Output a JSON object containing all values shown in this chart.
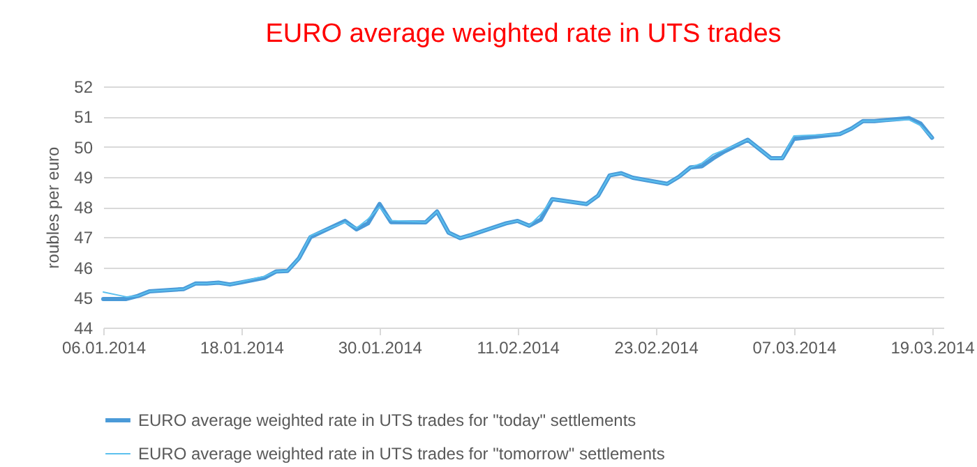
{
  "chart_data": {
    "type": "line",
    "title": "EURO average weighted rate in UTS trades",
    "ylabel": "roubles per euro",
    "x": [
      "2014-01-06",
      "2014-01-08",
      "2014-01-09",
      "2014-01-10",
      "2014-01-13",
      "2014-01-14",
      "2014-01-15",
      "2014-01-16",
      "2014-01-17",
      "2014-01-18",
      "2014-01-20",
      "2014-01-21",
      "2014-01-22",
      "2014-01-23",
      "2014-01-24",
      "2014-01-27",
      "2014-01-28",
      "2014-01-29",
      "2014-01-30",
      "2014-01-31",
      "2014-02-03",
      "2014-02-04",
      "2014-02-05",
      "2014-02-06",
      "2014-02-07",
      "2014-02-10",
      "2014-02-11",
      "2014-02-12",
      "2014-02-13",
      "2014-02-14",
      "2014-02-17",
      "2014-02-18",
      "2014-02-19",
      "2014-02-20",
      "2014-02-21",
      "2014-02-24",
      "2014-02-25",
      "2014-02-26",
      "2014-02-27",
      "2014-02-28",
      "2014-03-01",
      "2014-03-03",
      "2014-03-05",
      "2014-03-06",
      "2014-03-07",
      "2014-03-11",
      "2014-03-12",
      "2014-03-13",
      "2014-03-14",
      "2014-03-17",
      "2014-03-18",
      "2014-03-19"
    ],
    "series": [
      {
        "name": "EURO average weighted rate in UTS trades for \"today\" settlements",
        "color": "#4a9ad8",
        "values": [
          44.95,
          44.95,
          45.05,
          45.2,
          45.28,
          45.46,
          45.46,
          45.49,
          45.43,
          45.5,
          45.65,
          45.86,
          45.88,
          46.3,
          47.0,
          47.54,
          47.26,
          47.46,
          48.1,
          47.5,
          47.49,
          47.85,
          47.15,
          46.97,
          47.08,
          47.46,
          47.54,
          47.38,
          47.58,
          48.26,
          48.1,
          48.38,
          49.05,
          49.12,
          48.97,
          48.77,
          49.0,
          49.31,
          49.35,
          49.62,
          49.85,
          50.23,
          49.62,
          49.62,
          50.26,
          50.42,
          50.6,
          50.85,
          50.85,
          50.95,
          50.77,
          50.3
        ]
      },
      {
        "name": "EURO average weighted rate in UTS trades for \"tomorrow\" settlements",
        "color": "#5bc0ee",
        "values": [
          45.18,
          45.02,
          45.05,
          45.2,
          45.28,
          45.46,
          45.46,
          45.49,
          45.43,
          45.52,
          45.7,
          45.86,
          45.88,
          46.3,
          47.05,
          47.5,
          47.3,
          47.6,
          48.0,
          47.55,
          47.5,
          47.85,
          47.15,
          46.97,
          47.08,
          47.46,
          47.54,
          47.38,
          47.75,
          48.26,
          48.1,
          48.38,
          49.05,
          49.12,
          48.97,
          48.77,
          49.0,
          49.31,
          49.45,
          49.75,
          49.9,
          50.23,
          49.62,
          49.62,
          50.36,
          50.42,
          50.6,
          50.85,
          50.85,
          50.9,
          50.7,
          50.3
        ]
      }
    ],
    "xlim": [
      "2014-01-06",
      "2014-03-20"
    ],
    "xticks": [
      {
        "value": "2014-01-06",
        "label": "06.01.2014"
      },
      {
        "value": "2014-01-18",
        "label": "18.01.2014"
      },
      {
        "value": "2014-01-30",
        "label": "30.01.2014"
      },
      {
        "value": "2014-02-11",
        "label": "11.02.2014"
      },
      {
        "value": "2014-02-23",
        "label": "23.02.2014"
      },
      {
        "value": "2014-03-07",
        "label": "07.03.2014"
      },
      {
        "value": "2014-03-19",
        "label": "19.03.2014"
      }
    ],
    "ylim": [
      44,
      52
    ],
    "yticks": [
      44,
      45,
      46,
      47,
      48,
      49,
      50,
      51,
      52
    ],
    "grid": "y",
    "legend": "bottom",
    "marker": "none",
    "line_style": "solid"
  }
}
